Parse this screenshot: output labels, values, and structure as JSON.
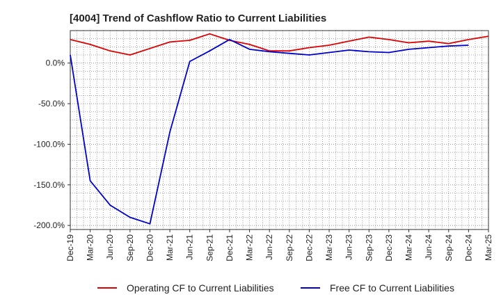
{
  "chart_data": {
    "type": "line",
    "title": "[4004]  Trend of Cashflow Ratio to Current Liabilities",
    "x_tick_labels": [
      "Dec-19",
      "Mar-20",
      "Jun-20",
      "Sep-20",
      "Dec-20",
      "Mar-21",
      "Jun-21",
      "Sep-21",
      "Dec-21",
      "Mar-22",
      "Jun-22",
      "Sep-22",
      "Dec-22",
      "Mar-23",
      "Jun-23",
      "Sep-23",
      "Dec-23",
      "Mar-24",
      "Jun-24",
      "Sep-24",
      "Dec-24",
      "Mar-25"
    ],
    "y_ticks": [
      0,
      -50,
      -100,
      -150,
      -200
    ],
    "y_tick_labels": [
      "0.0%",
      "-50.0%",
      "-100.0%",
      "-150.0%",
      "-200.0%"
    ],
    "ylim": [
      -205,
      40
    ],
    "grid": true,
    "legend_position": "bottom",
    "series": [
      {
        "name": "Operating CF to Current Liabilities",
        "color": "#dd0000",
        "values": [
          29,
          23,
          15,
          10,
          18,
          26,
          28,
          36,
          28,
          23,
          15,
          15,
          19,
          22,
          27,
          32,
          29,
          25,
          27,
          24,
          29,
          33
        ]
      },
      {
        "name": "Free CF to Current Liabilities",
        "color": "#0000cc",
        "values": [
          10,
          -145,
          -175,
          -190,
          -198,
          -85,
          2,
          15,
          29,
          17,
          14,
          12,
          10,
          13,
          16,
          14,
          13,
          17,
          19,
          21,
          22,
          null
        ]
      }
    ]
  }
}
